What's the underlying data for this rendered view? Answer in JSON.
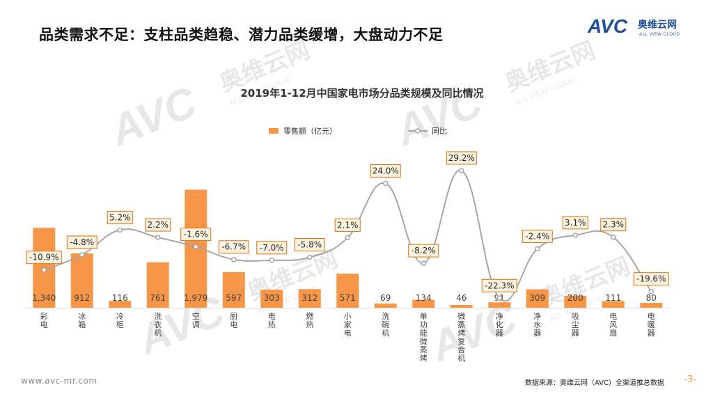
{
  "headline": "品类需求不足：支柱品类趋稳、潜力品类缓增，大盘动力不足",
  "logo": {
    "mark": "AVC",
    "name": "奥维云网",
    "tagline": "ALL VIEW CLOUD"
  },
  "footer": {
    "url": "www.avc-mr.com",
    "source": "数据来源：奥维云网（AVC）全渠道推总数据",
    "page": "-3-"
  },
  "colors": {
    "bar": "#f79646",
    "line": "#a6a6a6",
    "label_border": "#e46c0a",
    "label_fill": "#fdf3e1",
    "accent_blue": "#1f4e9c"
  },
  "chart_data": {
    "type": "bar+line",
    "title": "2019年1-12月中国家电市场分品类规模及同比情况",
    "legend_position": "top",
    "grid": false,
    "categories": [
      "彩电",
      "冰箱",
      "冷柜",
      "洗衣机",
      "空调",
      "厨电",
      "电热",
      "燃热",
      "小家电",
      "洗碗机",
      "单功能微蒸烤",
      "微蒸烤复合机",
      "净化器",
      "净水器",
      "吸尘器",
      "电风扇",
      "电暖器"
    ],
    "series": [
      {
        "name": "零售额（亿元）",
        "type": "bar",
        "values": [
          1340,
          912,
          116,
          761,
          1979,
          597,
          303,
          312,
          571,
          69,
          134,
          46,
          91,
          309,
          200,
          111,
          80
        ],
        "labels": [
          "1,340",
          "912",
          "116",
          "761",
          "1,979",
          "597",
          "303",
          "312",
          "571",
          "69",
          "134",
          "46",
          "91",
          "309",
          "200",
          "111",
          "80"
        ]
      },
      {
        "name": "同比",
        "type": "line",
        "values": [
          -10.9,
          -4.8,
          5.2,
          2.2,
          -1.6,
          -6.7,
          -7.0,
          -5.8,
          2.1,
          24.0,
          -8.2,
          29.2,
          -22.3,
          -2.4,
          3.1,
          2.3,
          -19.6
        ],
        "labels": [
          "-10.9%",
          "-4.8%",
          "5.2%",
          "2.2%",
          "-1.6%",
          "-6.7%",
          "-7.0%",
          "-5.8%",
          "2.1%",
          "24.0%",
          "-8.2%",
          "29.2%",
          "-22.3%",
          "-2.4%",
          "3.1%",
          "2.3%",
          "-19.6%"
        ]
      }
    ],
    "bar_ylim": [
      0,
      2300
    ],
    "line_ylim": [
      -27,
      32
    ]
  }
}
